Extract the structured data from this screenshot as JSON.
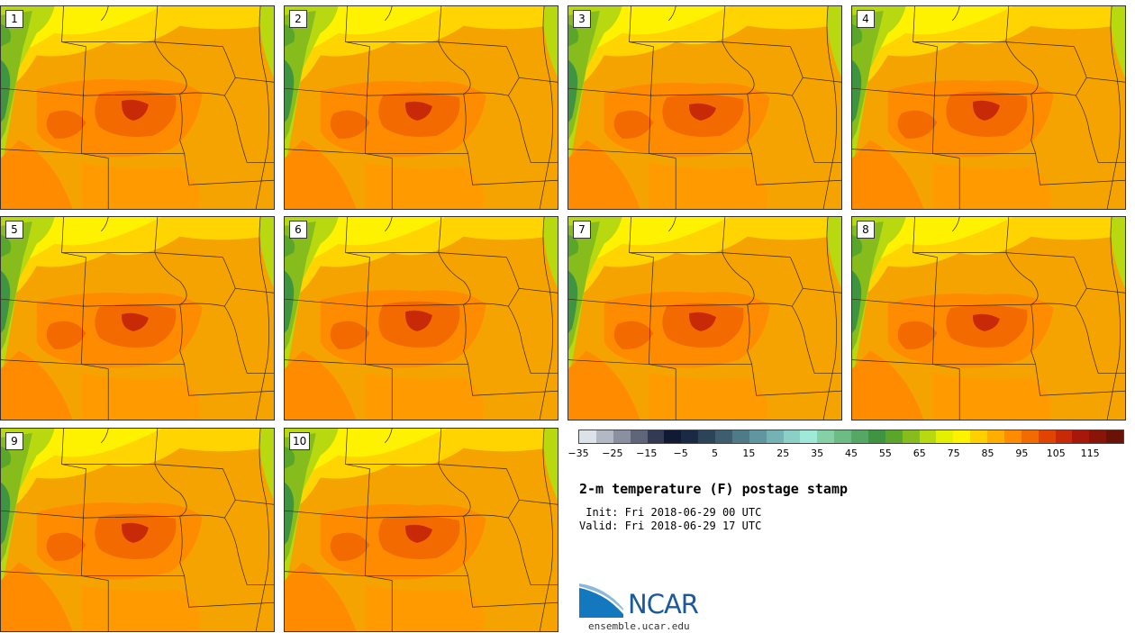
{
  "panels": [
    {
      "label": "1"
    },
    {
      "label": "2"
    },
    {
      "label": "3"
    },
    {
      "label": "4"
    },
    {
      "label": "5"
    },
    {
      "label": "6"
    },
    {
      "label": "7"
    },
    {
      "label": "8"
    },
    {
      "label": "9"
    },
    {
      "label": "10"
    }
  ],
  "colorbar": {
    "colors": [
      "#dde1e8",
      "#b3b8c4",
      "#8a90a0",
      "#5f667a",
      "#333b52",
      "#101a33",
      "#1b2a44",
      "#2c4458",
      "#3e5e70",
      "#4f7a88",
      "#5f96a0",
      "#74b2b4",
      "#8ccfc6",
      "#a0e8d8",
      "#86d0a8",
      "#6cbc84",
      "#54a864",
      "#3e9440",
      "#5aa62a",
      "#86bc1c",
      "#b8d810",
      "#e4f000",
      "#fff200",
      "#ffd000",
      "#ffae00",
      "#ff8c00",
      "#f26a00",
      "#e04400",
      "#c82a08",
      "#a8180a",
      "#8a1408",
      "#6a1206"
    ],
    "tick_labels": [
      "−35",
      "−25",
      "−15",
      "−5",
      "5",
      "15",
      "25",
      "35",
      "45",
      "55",
      "65",
      "75",
      "85",
      "95",
      "105",
      "115"
    ]
  },
  "title": "2-m temperature (F) postage stamp",
  "init": " Init: Fri 2018-06-29 00 UTC",
  "valid": "Valid: Fri 2018-06-29 17 UTC",
  "logo": {
    "name": "NCAR",
    "url": "ensemble.ucar.edu"
  }
}
